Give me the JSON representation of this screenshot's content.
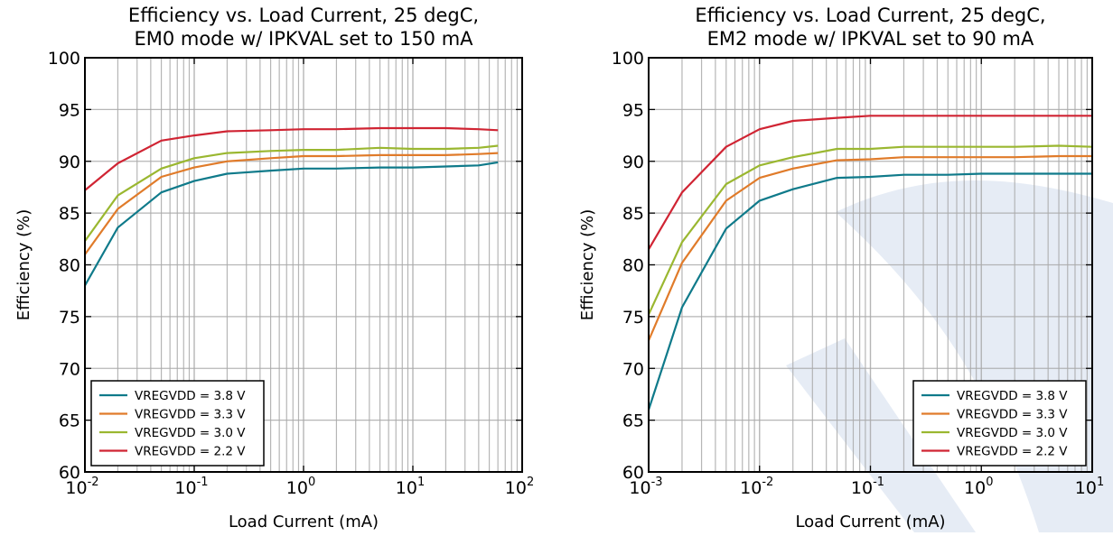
{
  "colors": {
    "vregvdd_3_8": "#0f7a8a",
    "vregvdd_3_3": "#e07b2a",
    "vregvdd_3_0": "#9ab730",
    "vregvdd_2_2": "#d02433",
    "grid": "#aaaaaa",
    "watermark": "#dde6f1"
  },
  "chart_data": [
    {
      "type": "line",
      "title_lines": [
        "Efficiency vs. Load Current, 25 degC,",
        "EM0 mode w/ IPKVAL set to 150 mA"
      ],
      "xlabel": "Load Current (mA)",
      "ylabel": "Efficiency (%)",
      "xscale": "log",
      "xlim": [
        0.01,
        100
      ],
      "ylim": [
        60,
        100
      ],
      "xtick_exponents": [
        "-2",
        "-1",
        "0",
        "1",
        "2"
      ],
      "ytick_labels": [
        "60",
        "65",
        "70",
        "75",
        "80",
        "85",
        "90",
        "95",
        "100"
      ],
      "grid": true,
      "legend_position": "lower-left",
      "x": [
        0.01,
        0.02,
        0.05,
        0.1,
        0.2,
        0.5,
        1,
        2,
        5,
        10,
        20,
        40,
        60
      ],
      "series": [
        {
          "name": "VREGVDD = 3.8 V",
          "color_key": "vregvdd_3_8",
          "values": [
            78.0,
            83.6,
            87.0,
            88.1,
            88.8,
            89.1,
            89.3,
            89.3,
            89.4,
            89.4,
            89.5,
            89.6,
            89.9
          ]
        },
        {
          "name": "VREGVDD = 3.3 V",
          "color_key": "vregvdd_3_3",
          "values": [
            81.0,
            85.4,
            88.5,
            89.4,
            90.0,
            90.3,
            90.5,
            90.5,
            90.6,
            90.6,
            90.6,
            90.7,
            90.8
          ]
        },
        {
          "name": "VREGVDD = 3.0 V",
          "color_key": "vregvdd_3_0",
          "values": [
            82.3,
            86.7,
            89.3,
            90.3,
            90.8,
            91.0,
            91.1,
            91.1,
            91.3,
            91.2,
            91.2,
            91.3,
            91.5
          ]
        },
        {
          "name": "VREGVDD = 2.2 V",
          "color_key": "vregvdd_2_2",
          "values": [
            87.2,
            89.8,
            92.0,
            92.5,
            92.9,
            93.0,
            93.1,
            93.1,
            93.2,
            93.2,
            93.2,
            93.1,
            93.0
          ]
        }
      ]
    },
    {
      "type": "line",
      "title_lines": [
        "Efficiency vs. Load Current, 25 degC,",
        "EM2 mode w/ IPKVAL set to 90 mA"
      ],
      "xlabel": "Load Current (mA)",
      "ylabel": "Efficiency (%)",
      "xscale": "log",
      "xlim": [
        0.001,
        10
      ],
      "ylim": [
        60,
        100
      ],
      "xtick_exponents": [
        "-3",
        "-2",
        "-1",
        "0",
        "1"
      ],
      "ytick_labels": [
        "60",
        "65",
        "70",
        "75",
        "80",
        "85",
        "90",
        "95",
        "100"
      ],
      "grid": true,
      "legend_position": "lower-right",
      "x": [
        0.001,
        0.002,
        0.005,
        0.01,
        0.02,
        0.05,
        0.1,
        0.2,
        0.5,
        1,
        2,
        5,
        10
      ],
      "series": [
        {
          "name": "VREGVDD = 3.8 V",
          "color_key": "vregvdd_3_8",
          "values": [
            66.0,
            75.9,
            83.5,
            86.2,
            87.3,
            88.4,
            88.5,
            88.7,
            88.7,
            88.8,
            88.8,
            88.8,
            88.8
          ]
        },
        {
          "name": "VREGVDD = 3.3 V",
          "color_key": "vregvdd_3_3",
          "values": [
            72.7,
            80.2,
            86.2,
            88.4,
            89.3,
            90.1,
            90.2,
            90.4,
            90.4,
            90.4,
            90.4,
            90.5,
            90.5
          ]
        },
        {
          "name": "VREGVDD = 3.0 V",
          "color_key": "vregvdd_3_0",
          "values": [
            75.2,
            82.2,
            87.8,
            89.6,
            90.4,
            91.2,
            91.2,
            91.4,
            91.4,
            91.4,
            91.4,
            91.5,
            91.4
          ]
        },
        {
          "name": "VREGVDD = 2.2 V",
          "color_key": "vregvdd_2_2",
          "values": [
            81.5,
            87.0,
            91.4,
            93.1,
            93.9,
            94.2,
            94.4,
            94.4,
            94.4,
            94.4,
            94.4,
            94.4,
            94.4
          ]
        }
      ]
    }
  ]
}
